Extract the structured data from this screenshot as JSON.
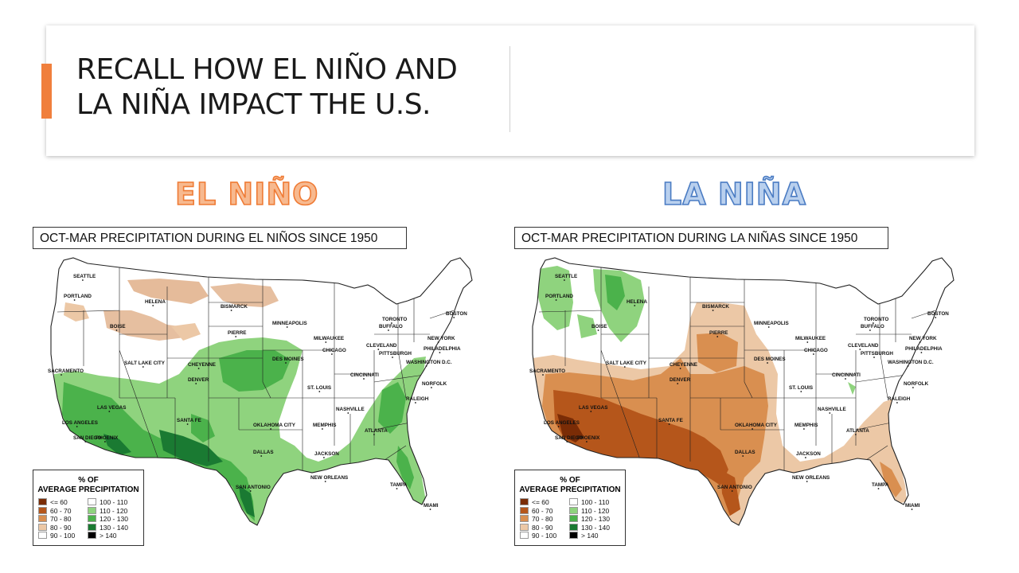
{
  "slide": {
    "title_line1": "RECALL HOW EL NIÑO AND",
    "title_line2": "LA NIÑA IMPACT THE U.S.",
    "accent_color": "#f07f3c"
  },
  "panels": [
    {
      "heading": "EL NIÑO",
      "heading_color": "#ef7b35",
      "caption": "OCT-MAR PRECIPITATION DURING EL NIÑOS SINCE 1950",
      "legend_title_line1": "% OF",
      "legend_title_line2": "AVERAGE PRECIPITATION"
    },
    {
      "heading": "LA NIÑA",
      "heading_color": "#4b7cc3",
      "caption": "OCT-MAR PRECIPITATION DURING LA NIÑAS SINCE 1950",
      "legend_title_line1": "% OF",
      "legend_title_line2": "AVERAGE PRECIPITATION"
    }
  ],
  "legend_items": [
    {
      "label": "<= 60",
      "color": "#7a2c06"
    },
    {
      "label": "60 - 70",
      "color": "#b5561b"
    },
    {
      "label": "70 - 80",
      "color": "#d98f50"
    },
    {
      "label": "80 - 90",
      "color": "#ecc8a6"
    },
    {
      "label": "90 - 100",
      "color": "#ffffff"
    },
    {
      "label": "100 - 110",
      "color": "#ffffff"
    },
    {
      "label": "110 - 120",
      "color": "#8fd37e"
    },
    {
      "label": "120 - 130",
      "color": "#4bb24b"
    },
    {
      "label": "130 - 140",
      "color": "#1a7a32"
    },
    {
      "label": "> 140",
      "color": "#000000"
    }
  ],
  "cities": [
    "SEATTLE",
    "PORTLAND",
    "HELENA",
    "BISMARCK",
    "BOISE",
    "PIERRE",
    "MINNEAPOLIS",
    "TORONTO",
    "BUFFALO",
    "BOSTON",
    "NEW YORK",
    "MILWAUKEE",
    "CHICAGO",
    "CLEVELAND",
    "PITTSBURGH",
    "PHILADELPHIA",
    "WASHINGTON D.C.",
    "SACRAMENTO",
    "SALT LAKE CITY",
    "CHEYENNE",
    "DES MOINES",
    "DENVER",
    "CINCINNATI",
    "ST. LOUIS",
    "NORFOLK",
    "LAS VEGAS",
    "RALEIGH",
    "SANTA FE",
    "NASHVILLE",
    "LOS ANGELES",
    "OKLAHOMA CITY",
    "MEMPHIS",
    "ATLANTA",
    "SAN DIEGO",
    "PHOENIX",
    "DALLAS",
    "JACKSON",
    "NEW ORLEANS",
    "SAN ANTONIO",
    "TAMPA",
    "MIAMI"
  ]
}
